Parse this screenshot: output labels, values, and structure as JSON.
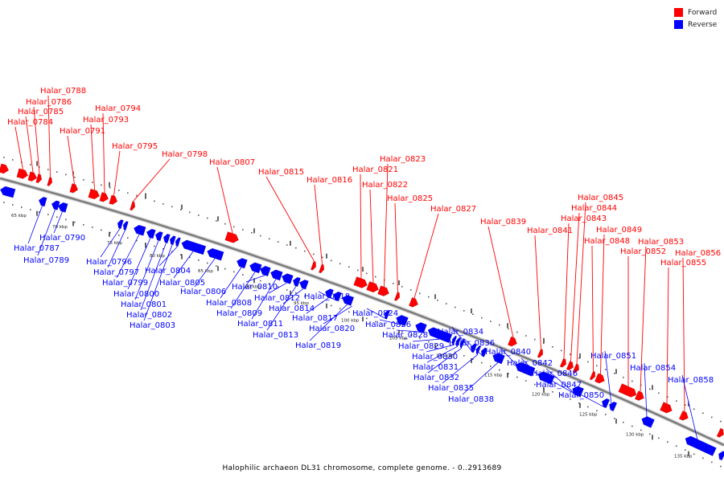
{
  "legend": {
    "forward_label": "Forward",
    "reverse_label": "Reverse"
  },
  "colors": {
    "forward": "#ff0000",
    "reverse": "#0000ff",
    "backbone": "#9a9a9a"
  },
  "caption": "Halophilic archaeon DL31 chromosome, complete genome. - 0..2913689",
  "kbp_ticks": [
    "65 kbp",
    "70 kbp",
    "75 kbp",
    "80 kbp",
    "85 kbp",
    "90 kbp",
    "95 kbp",
    "100 kbp",
    "105 kbp",
    "110 kbp",
    "115 kbp",
    "120 kbp",
    "125 kbp",
    "130 kbp",
    "135 kbp"
  ],
  "forward_genes": [
    "Halar_0784",
    "Halar_0785",
    "Halar_0786",
    "Halar_0788",
    "Halar_0791",
    "Halar_0793",
    "Halar_0794",
    "Halar_0795",
    "Halar_0798",
    "Halar_0807",
    "Halar_0815",
    "Halar_0816",
    "Halar_0821",
    "Halar_0822",
    "Halar_0823",
    "Halar_0825",
    "Halar_0827",
    "Halar_0839",
    "Halar_0841",
    "Halar_0843",
    "Halar_0844",
    "Halar_0845",
    "Halar_0848",
    "Halar_0849",
    "Halar_0852",
    "Halar_0853",
    "Halar_0855",
    "Halar_0856"
  ],
  "reverse_genes": [
    "Halar_0787",
    "Halar_0789",
    "Halar_0790",
    "Halar_0796",
    "Halar_0797",
    "Halar_0799",
    "Halar_0800",
    "Halar_0801",
    "Halar_0802",
    "Halar_0803",
    "Halar_0804",
    "Halar_0805",
    "Halar_0806",
    "Halar_0808",
    "Halar_0809",
    "Halar_0810",
    "Halar_0811",
    "Halar_0812",
    "Halar_0813",
    "Halar_0814",
    "Halar_0817",
    "Halar_0818",
    "Halar_0819",
    "Halar_0820",
    "Halar_0824",
    "Halar_0826",
    "Halar_0828",
    "Halar_0829",
    "Halar_0830",
    "Halar_0831",
    "Halar_0832",
    "Halar_0834",
    "Halar_0835",
    "Halar_0836",
    "Halar_0838",
    "Halar_0840",
    "Halar_0842",
    "Halar_0846",
    "Halar_0847",
    "Halar_0850",
    "Halar_0851",
    "Halar_0854",
    "Halar_0858"
  ]
}
